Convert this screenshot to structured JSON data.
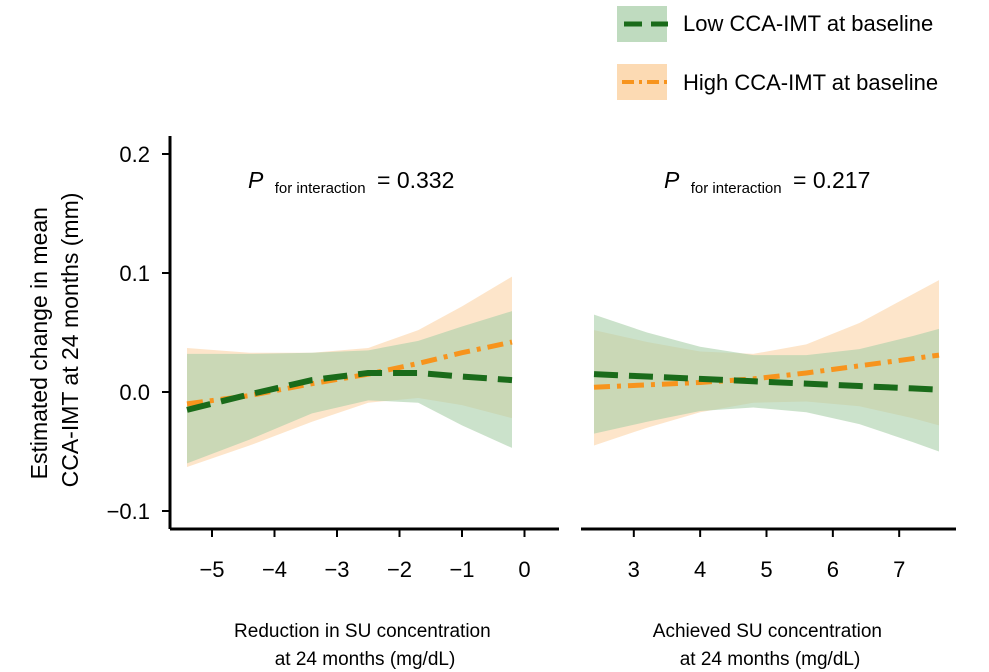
{
  "figure": {
    "y_axis_label_line1": "Estimated change in mean",
    "y_axis_label_line2": "CCA-IMT at 24 months (mm)",
    "legend": [
      {
        "label": "Low CCA-IMT at baseline",
        "line_color": "#1a6b1a",
        "band_color": "#a9cfa9",
        "dash": "dashed"
      },
      {
        "label": "High CCA-IMT at baseline",
        "line_color": "#f7941d",
        "band_color": "#fcd3a6",
        "dash": "dash-dot"
      }
    ],
    "y_ticks": [
      {
        "value": 0.2,
        "label": "0.2"
      },
      {
        "value": 0.1,
        "label": "0.1"
      },
      {
        "value": 0.0,
        "label": "0.0"
      },
      {
        "value": -0.1,
        "label": "−0.1"
      }
    ]
  },
  "chart_data": [
    {
      "type": "line",
      "title": "",
      "annotation": {
        "p_symbol": "P",
        "p_subscript": "for interaction",
        "p_value": "= 0.332"
      },
      "xlabel_line1": "Reduction in SU concentration",
      "xlabel_line2": "at 24 months (mg/dL)",
      "ylabel": "Estimated change in mean CCA-IMT at 24 months (mm)",
      "xlim": [
        -5.4,
        0.2
      ],
      "ylim": [
        -0.12,
        0.2
      ],
      "x_ticks": [
        {
          "value": -5,
          "label": "−5"
        },
        {
          "value": -4,
          "label": "−4"
        },
        {
          "value": -3,
          "label": "−3"
        },
        {
          "value": -2,
          "label": "−2"
        },
        {
          "value": -1,
          "label": "−1"
        },
        {
          "value": 0,
          "label": "0"
        }
      ],
      "x": [
        -5.4,
        -4.4,
        -3.4,
        -2.5,
        -1.7,
        -1.0,
        -0.2
      ],
      "series": [
        {
          "name": "Low CCA-IMT at baseline",
          "values": [
            -0.015,
            -0.002,
            0.01,
            0.016,
            0.016,
            0.013,
            0.01
          ],
          "lower": [
            -0.06,
            -0.04,
            -0.018,
            -0.007,
            -0.009,
            -0.028,
            -0.047
          ],
          "upper": [
            0.032,
            0.032,
            0.033,
            0.035,
            0.043,
            0.055,
            0.068
          ]
        },
        {
          "name": "High CCA-IMT at baseline",
          "values": [
            -0.01,
            -0.003,
            0.007,
            0.015,
            0.024,
            0.033,
            0.042
          ],
          "lower": [
            -0.063,
            -0.045,
            -0.025,
            -0.009,
            -0.005,
            -0.011,
            -0.022
          ],
          "upper": [
            0.037,
            0.033,
            0.033,
            0.037,
            0.052,
            0.072,
            0.097
          ]
        }
      ]
    },
    {
      "type": "line",
      "title": "",
      "annotation": {
        "p_symbol": "P",
        "p_subscript": "for interaction",
        "p_value": "= 0.217"
      },
      "xlabel_line1": "Achieved SU concentration",
      "xlabel_line2": "at 24 months (mg/dL)",
      "ylabel": "Estimated change in mean CCA-IMT at 24 months (mm)",
      "xlim": [
        2.4,
        7.6
      ],
      "ylim": [
        -0.12,
        0.2
      ],
      "x_ticks": [
        {
          "value": 3,
          "label": "3"
        },
        {
          "value": 4,
          "label": "4"
        },
        {
          "value": 5,
          "label": "5"
        },
        {
          "value": 6,
          "label": "6"
        },
        {
          "value": 7,
          "label": "7"
        }
      ],
      "x": [
        2.4,
        3.2,
        4.0,
        4.8,
        5.6,
        6.4,
        7.2,
        7.6
      ],
      "series": [
        {
          "name": "Low CCA-IMT at baseline",
          "values": [
            0.015,
            0.013,
            0.011,
            0.009,
            0.007,
            0.005,
            0.003,
            0.002
          ],
          "lower": [
            -0.035,
            -0.025,
            -0.016,
            -0.013,
            -0.017,
            -0.027,
            -0.042,
            -0.05
          ],
          "upper": [
            0.065,
            0.05,
            0.038,
            0.031,
            0.031,
            0.036,
            0.047,
            0.053
          ]
        },
        {
          "name": "High CCA-IMT at baseline",
          "values": [
            0.004,
            0.006,
            0.008,
            0.011,
            0.016,
            0.022,
            0.028,
            0.031
          ],
          "lower": [
            -0.045,
            -0.03,
            -0.017,
            -0.009,
            -0.008,
            -0.012,
            -0.022,
            -0.028
          ],
          "upper": [
            0.052,
            0.042,
            0.034,
            0.032,
            0.04,
            0.058,
            0.082,
            0.094
          ]
        }
      ]
    }
  ]
}
